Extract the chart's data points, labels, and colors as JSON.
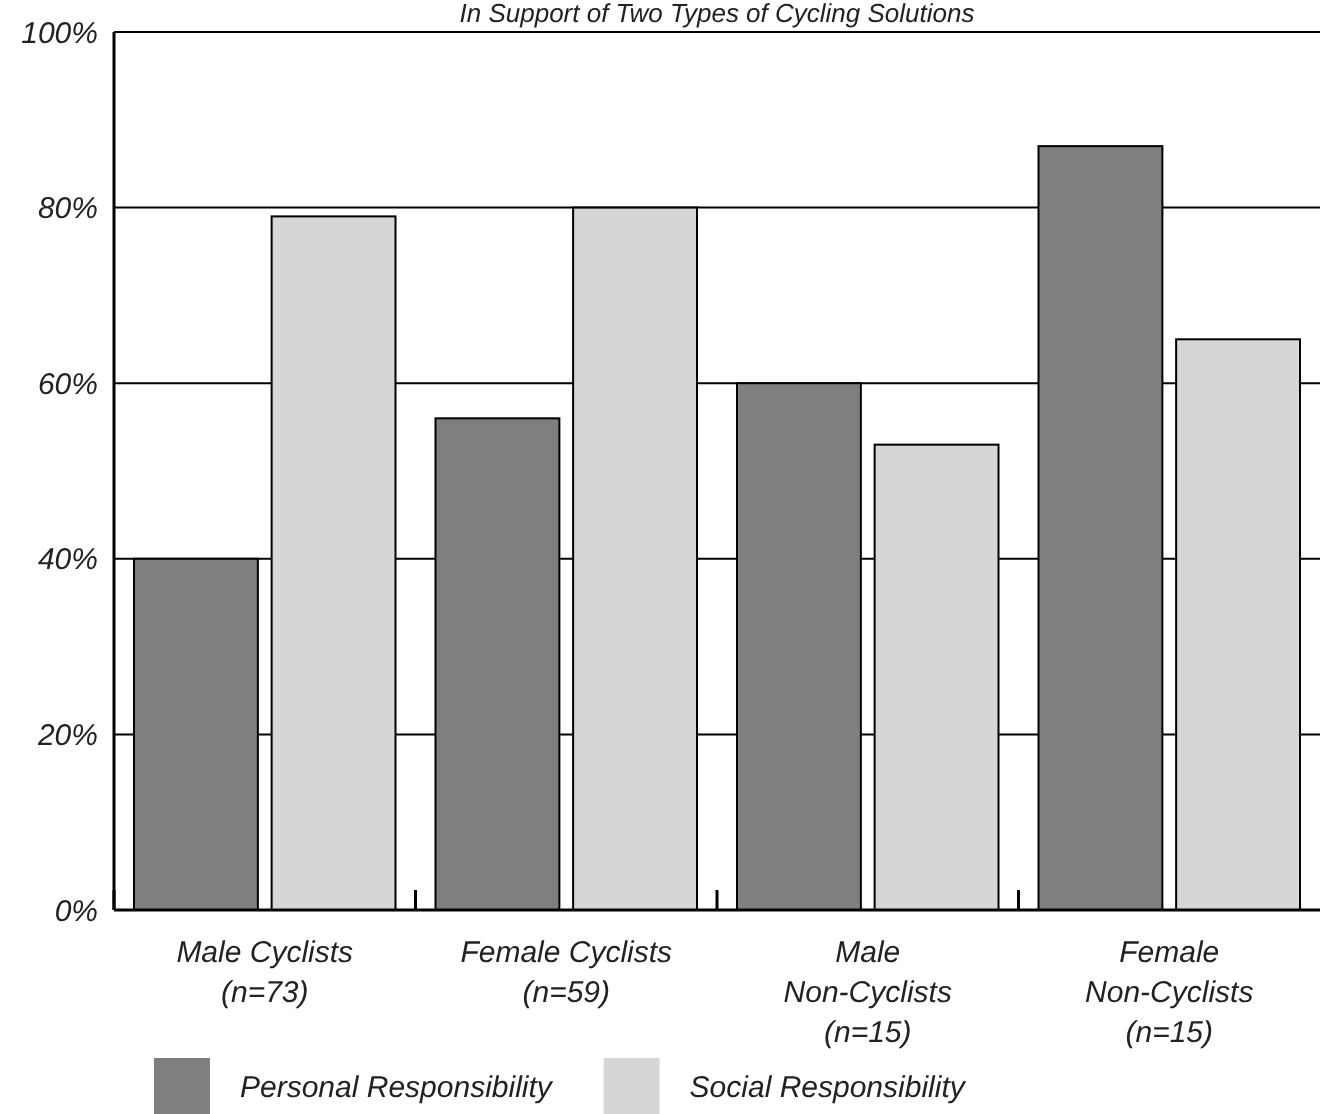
{
  "chart_data": {
    "type": "bar",
    "title": "In Support of Two Types of Cycling Solutions",
    "categories": [
      "Male Cyclists\n(n=73)",
      "Female Cyclists\n(n=59)",
      "Male\nNon-Cyclists\n(n=15)",
      "Female\nNon-Cyclists\n(n=15)"
    ],
    "series": [
      {
        "name": "Personal Responsibility",
        "color": "#7f7f7f",
        "values": [
          40,
          56,
          60,
          87
        ]
      },
      {
        "name": "Social Responsibility",
        "color": "#d6d6d6",
        "values": [
          79,
          80,
          53,
          65
        ]
      }
    ],
    "ylim": [
      0,
      100
    ],
    "yticks": [
      {
        "value": 0,
        "label": "0%"
      },
      {
        "value": 20,
        "label": "20%"
      },
      {
        "value": 40,
        "label": "40%"
      },
      {
        "value": 60,
        "label": "60%"
      },
      {
        "value": 80,
        "label": "80%"
      },
      {
        "value": 100,
        "label": "100%"
      }
    ],
    "grid": "y",
    "legend": "bottom"
  }
}
